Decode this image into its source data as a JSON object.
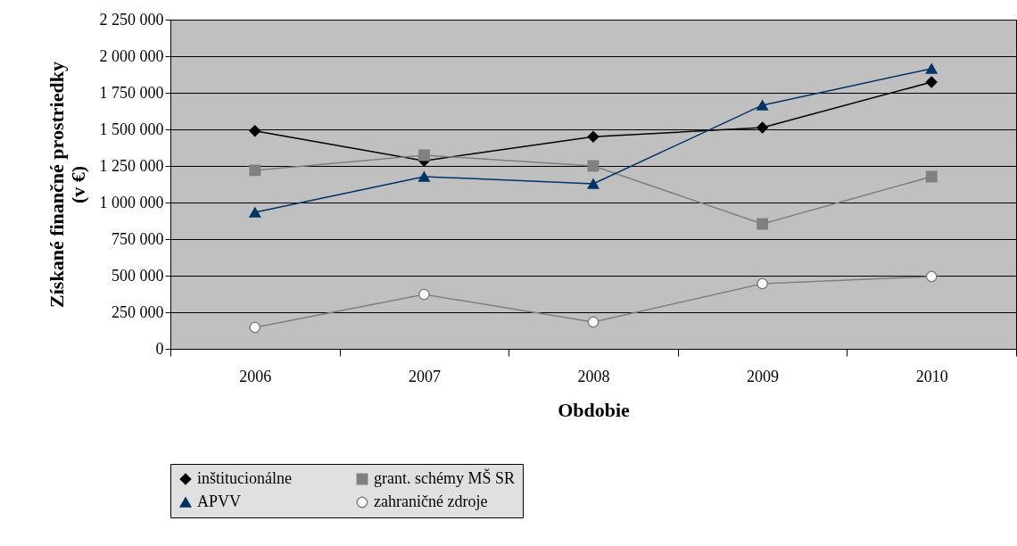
{
  "chart_data": {
    "type": "line",
    "xlabel": "Obdobie",
    "ylabel": "Získané finančné prostriedky\n(v €)",
    "categories": [
      "2006",
      "2007",
      "2008",
      "2009",
      "2010"
    ],
    "series": [
      {
        "name": "inštitucionálne",
        "color": "#000000",
        "marker": "diamond",
        "values": [
          1490000,
          1285000,
          1450000,
          1512000,
          1823000
        ]
      },
      {
        "name": "grant. schémy MŠ SR",
        "color": "#808080",
        "marker": "square",
        "values": [
          1220000,
          1323000,
          1250000,
          854000,
          1177000
        ]
      },
      {
        "name": "APVV",
        "color": "#003366",
        "marker": "triangle",
        "values": [
          933000,
          1177000,
          1128000,
          1665000,
          1915000
        ]
      },
      {
        "name": "zahraničné zdroje",
        "color": "#808080",
        "marker": "circle",
        "values": [
          146000,
          372000,
          183000,
          445000,
          494000
        ]
      }
    ],
    "ylim": [
      0,
      2250000
    ],
    "yticks": [
      0,
      {
        "value": 250000,
        "label": "250 000"
      },
      {
        "value": 500000,
        "label": "500 000"
      },
      {
        "value": 750000,
        "label": "750 000"
      },
      {
        "value": 1000000,
        "label": "1 000 000"
      },
      {
        "value": 1250000,
        "label": "1 250 000"
      },
      {
        "value": 1500000,
        "label": "1 500 000"
      },
      {
        "value": 1750000,
        "label": "1 750 000"
      },
      {
        "value": 2000000,
        "label": "2 000 000"
      },
      {
        "value": 2250000,
        "label": "2 250 000"
      }
    ],
    "grid": "y",
    "legend": "bottom"
  }
}
